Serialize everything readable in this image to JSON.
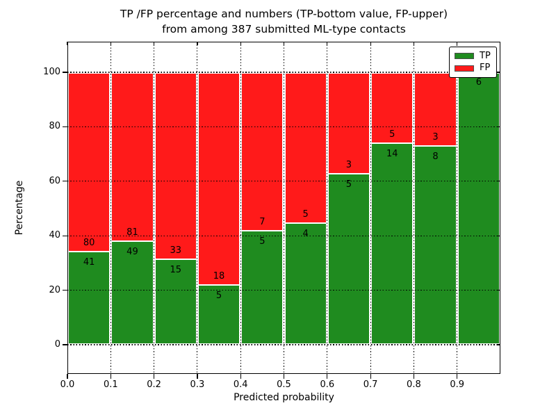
{
  "figure": {
    "title_line1": "TP /FP percentage and numbers (TP-bottom value, FP-upper)",
    "title_line2": "from among 387 submitted ML-type contacts"
  },
  "chart_data": {
    "type": "bar",
    "stacked": true,
    "normalized_to_percent": true,
    "title": "TP /FP percentage and numbers (TP-bottom value, FP-upper)\nfrom among 387 submitted ML-type contacts",
    "xlabel": "Predicted probability",
    "ylabel": "Percentage",
    "total_contacts": 387,
    "x_bin_edges": [
      0.0,
      0.1,
      0.2,
      0.3,
      0.4,
      0.5,
      0.6,
      0.7,
      0.8,
      0.9,
      1.0
    ],
    "x_tick_labels": [
      "0.0",
      "0.1",
      "0.2",
      "0.3",
      "0.4",
      "0.5",
      "0.6",
      "0.7",
      "0.8",
      "0.9"
    ],
    "y_ticks": [
      0,
      20,
      40,
      60,
      80,
      100
    ],
    "x_range": [
      0,
      1
    ],
    "ylim_view": [
      -11,
      111
    ],
    "series": [
      {
        "name": "TP",
        "color": "#1f8b1f",
        "stack_position": "bottom",
        "values": [
          41,
          49,
          15,
          5,
          5,
          4,
          5,
          14,
          8,
          6
        ]
      },
      {
        "name": "FP",
        "color": "#ff1a1a",
        "stack_position": "top",
        "values": [
          80,
          81,
          33,
          18,
          7,
          5,
          3,
          5,
          3,
          0
        ]
      }
    ],
    "bar_edge_color": "#ffffff",
    "legend": {
      "position": "upper right",
      "entries": [
        "TP",
        "FP"
      ]
    },
    "grid": {
      "on": true,
      "linestyle": "dotted",
      "color": "#000000"
    }
  }
}
